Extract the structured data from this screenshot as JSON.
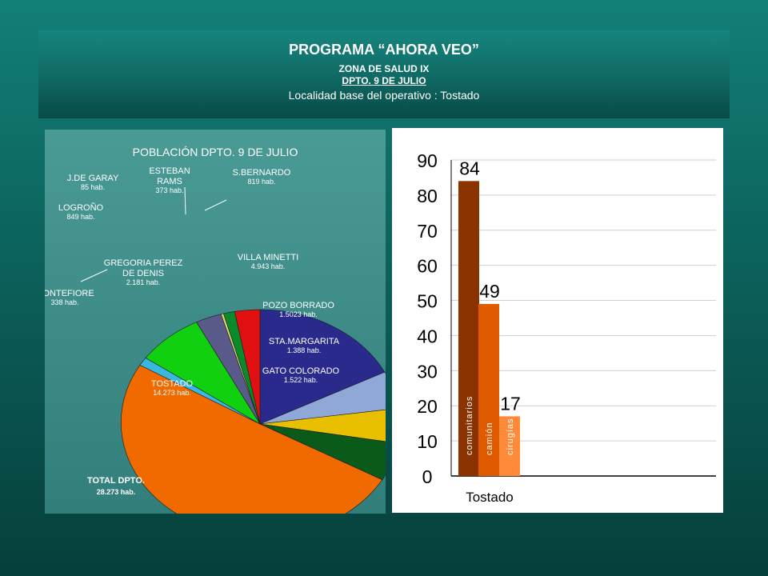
{
  "header": {
    "title": "PROGRAMA “AHORA VEO”",
    "zone": "ZONA DE SALUD IX",
    "dept": "DPTO. 9 DE JULIO",
    "locality": "Localidad base del operativo : Tostado"
  },
  "pie_chart": {
    "type": "pie",
    "title": "POBLACIÓN DPTO. 9 DE JULIO",
    "total": {
      "label": "TOTAL DPTO.",
      "value": "28.273 hab."
    },
    "slices": [
      {
        "name": "VILLA MINETTI",
        "value": "4.943 hab.",
        "share": 0.175,
        "color": "#2a2a8c"
      },
      {
        "name": "POZO BORRADO",
        "value": "1.5023 hab.",
        "share": 0.053,
        "color": "#8fa8d8"
      },
      {
        "name": "STA.MARGARITA",
        "value": "1.388 hab.",
        "share": 0.049,
        "color": "#e8c000"
      },
      {
        "name": "GATO COLORADO",
        "value": "1.522 hab.",
        "share": 0.054,
        "color": "#0a5a1a"
      },
      {
        "name": "TOSTADO",
        "value": "14.273 hab.",
        "share": 0.505,
        "color": "#f06a00"
      },
      {
        "name": "MONTEFIORE",
        "value": "338 hab.",
        "share": 0.012,
        "color": "#38b8e0"
      },
      {
        "name": "GREGORIA PEREZ DE DENIS",
        "value": "2.181 hab.",
        "share": 0.077,
        "color": "#10d010"
      },
      {
        "name": "LOGROÑO",
        "value": "849 hab.",
        "share": 0.03,
        "color": "#5a5a8a"
      },
      {
        "name": "J.DE GARAY",
        "value": "85 hab.",
        "share": 0.003,
        "color": "#d8d870"
      },
      {
        "name": "ESTEBAN RAMS",
        "value": "373 hab.",
        "share": 0.013,
        "color": "#0a8a2a"
      },
      {
        "name": "S.BERNARDO",
        "value": "819 hab.",
        "share": 0.029,
        "color": "#e01010"
      }
    ]
  },
  "chart_data": {
    "type": "bar",
    "categories": [
      "Tostado"
    ],
    "series": [
      {
        "name": "comunitarios",
        "values": [
          84
        ],
        "color": "#8a3200"
      },
      {
        "name": "camión",
        "values": [
          49
        ],
        "color": "#e05a00"
      },
      {
        "name": "cirugías",
        "values": [
          17
        ],
        "color": "#ff8a3a"
      }
    ],
    "data_labels": [
      "84",
      "49",
      "17"
    ],
    "y_ticks": [
      "0",
      "10",
      "20",
      "30",
      "40",
      "50",
      "60",
      "70",
      "80",
      "90"
    ],
    "ylim": [
      0,
      90
    ],
    "grid": true,
    "xlabel": "",
    "ylabel": ""
  }
}
